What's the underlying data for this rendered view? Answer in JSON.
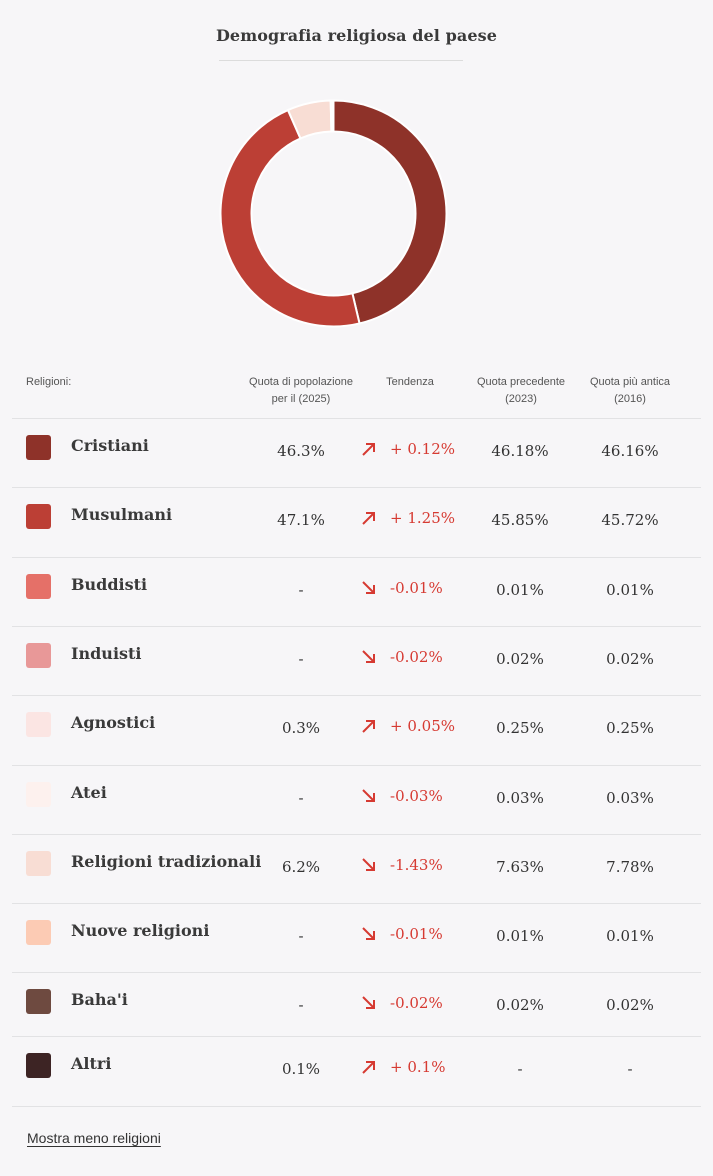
{
  "title": "Demografia religiosa del paese",
  "chart_data": {
    "type": "pie",
    "title": "",
    "slices": [
      {
        "label": "Cristiani",
        "value": 46.3,
        "color": "#8e3229"
      },
      {
        "label": "Musulmani",
        "value": 47.1,
        "color": "#bc3f35"
      },
      {
        "label": "Religioni tradizionali",
        "value": 6.2,
        "color": "#f8ddd4"
      },
      {
        "label": "Agnostici",
        "value": 0.3,
        "color": "#fbe5e3"
      },
      {
        "label": "Altri",
        "value": 0.1,
        "color": "#3d2424"
      }
    ]
  },
  "table": {
    "headers": {
      "religions": "Religioni:",
      "share_line1": "Quota di popolazione",
      "share_line2": "per il (2025)",
      "trend": "Tendenza",
      "prev_line1": "Quota precedente",
      "prev_line2": "(2023)",
      "old_line1": "Quota più antica",
      "old_line2": "(2016)"
    },
    "rows": [
      {
        "name": "Cristiani",
        "color": "#8e3229",
        "share": "46.3%",
        "trend_dir": "up",
        "trend": "+ 0.12%",
        "prev": "46.18%",
        "old": "46.16%"
      },
      {
        "name": "Musulmani",
        "color": "#bc3f35",
        "share": "47.1%",
        "trend_dir": "up",
        "trend": "+ 1.25%",
        "prev": "45.85%",
        "old": "45.72%"
      },
      {
        "name": "Buddisti",
        "color": "#e57068",
        "share": "-",
        "trend_dir": "down",
        "trend": "-0.01%",
        "prev": "0.01%",
        "old": "0.01%"
      },
      {
        "name": "Induisti",
        "color": "#e89898",
        "share": "-",
        "trend_dir": "down",
        "trend": "-0.02%",
        "prev": "0.02%",
        "old": "0.02%"
      },
      {
        "name": "Agnostici",
        "color": "#fbe5e3",
        "share": "0.3%",
        "trend_dir": "up",
        "trend": "+ 0.05%",
        "prev": "0.25%",
        "old": "0.25%"
      },
      {
        "name": "Atei",
        "color": "#fdf1ee",
        "share": "-",
        "trend_dir": "down",
        "trend": "-0.03%",
        "prev": "0.03%",
        "old": "0.03%"
      },
      {
        "name": "Religioni tradizionali",
        "color": "#f8ddd4",
        "share": "6.2%",
        "trend_dir": "down",
        "trend": "-1.43%",
        "prev": "7.63%",
        "old": "7.78%"
      },
      {
        "name": "Nuove religioni",
        "color": "#fccbb4",
        "share": "-",
        "trend_dir": "down",
        "trend": "-0.01%",
        "prev": "0.01%",
        "old": "0.01%"
      },
      {
        "name": "Baha'i",
        "color": "#6e4a40",
        "share": "-",
        "trend_dir": "down",
        "trend": "-0.02%",
        "prev": "0.02%",
        "old": "0.02%"
      },
      {
        "name": "Altri",
        "color": "#3d2424",
        "share": "0.1%",
        "trend_dir": "up",
        "trend": "+ 0.1%",
        "prev": "-",
        "old": "-"
      }
    ]
  },
  "more_link": "Mostra meno religioni",
  "colors": {
    "trend": "#d63a32",
    "background": "#f7f6f8"
  }
}
